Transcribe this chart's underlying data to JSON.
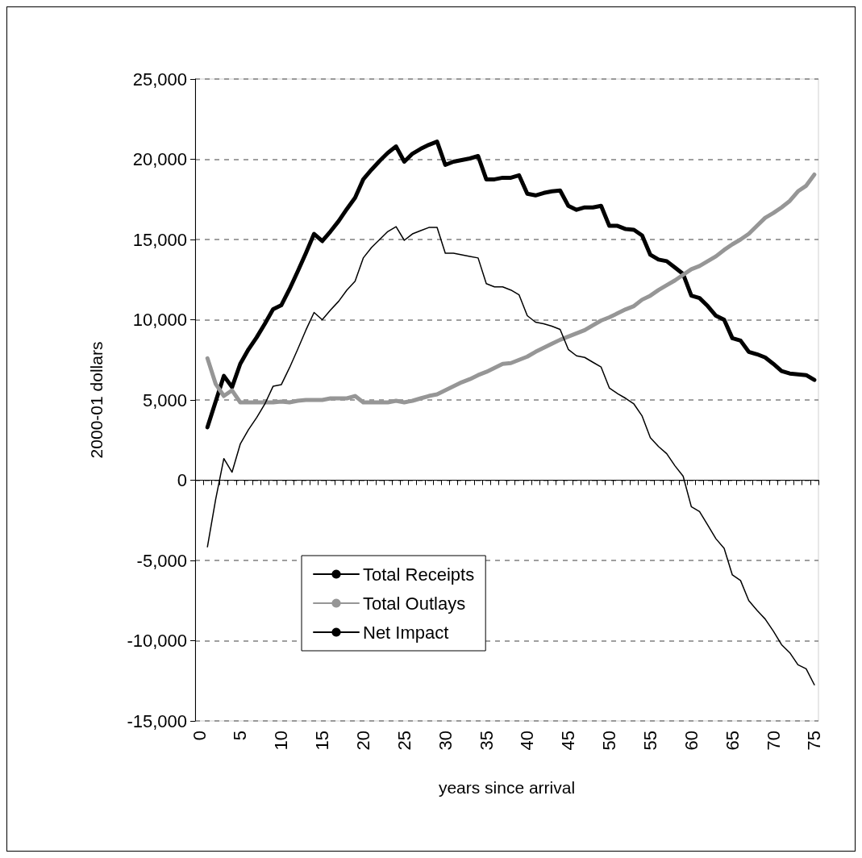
{
  "chart_data": {
    "type": "line",
    "xlabel": "years since arrival",
    "ylabel": "2000-01 dollars",
    "categories": [
      "0",
      null,
      null,
      null,
      null,
      "5",
      null,
      null,
      null,
      null,
      "10",
      null,
      null,
      null,
      null,
      "15",
      null,
      null,
      null,
      null,
      "20",
      null,
      null,
      null,
      null,
      "25",
      null,
      null,
      null,
      null,
      "30",
      null,
      null,
      null,
      null,
      "35",
      null,
      null,
      null,
      null,
      "40",
      null,
      null,
      null,
      null,
      "45",
      null,
      null,
      null,
      null,
      "50",
      null,
      null,
      null,
      null,
      "55",
      null,
      null,
      null,
      null,
      "60",
      null,
      null,
      null,
      null,
      "65",
      null,
      null,
      null,
      null,
      "70",
      null,
      null,
      null,
      null,
      "75"
    ],
    "series": [
      {
        "name": "Total Receipts",
        "color": "#000000",
        "values": [
          null,
          3300,
          4900,
          6500,
          5800,
          7250,
          8150,
          8900,
          9750,
          10650,
          10900,
          11900,
          13000,
          14150,
          15350,
          14900,
          15500,
          16150,
          16900,
          17600,
          18750,
          19350,
          19900,
          20400,
          20800,
          19850,
          20350,
          20650,
          20900,
          21100,
          19650,
          19850,
          19950,
          20050,
          20200,
          18750,
          18750,
          18850,
          18850,
          19000,
          17850,
          17750,
          17900,
          18000,
          18050,
          17100,
          16850,
          17000,
          17000,
          17100,
          15850,
          15850,
          15650,
          15600,
          15250,
          14050,
          13750,
          13650,
          13250,
          12850,
          11500,
          11350,
          10850,
          10250,
          10000,
          8850,
          8700,
          8000,
          7850,
          7650,
          7250,
          6800,
          6650,
          6600,
          6550,
          6250
        ]
      },
      {
        "name": "Total Outlays",
        "color": "#969696",
        "values": [
          null,
          7600,
          6000,
          5250,
          5600,
          4850,
          4850,
          4850,
          4850,
          4850,
          4900,
          4850,
          4950,
          5000,
          5000,
          5000,
          5100,
          5100,
          5100,
          5250,
          4850,
          4850,
          4850,
          4850,
          4950,
          4850,
          4950,
          5100,
          5250,
          5350,
          5600,
          5850,
          6100,
          6300,
          6550,
          6750,
          7000,
          7250,
          7300,
          7500,
          7700,
          8000,
          8250,
          8500,
          8750,
          8950,
          9150,
          9350,
          9650,
          9950,
          10150,
          10400,
          10650,
          10850,
          11250,
          11500,
          11850,
          12150,
          12450,
          12800,
          13150,
          13350,
          13650,
          13950,
          14350,
          14700,
          15000,
          15350,
          15850,
          16350,
          16650,
          17000,
          17400,
          18000,
          18350,
          19050
        ]
      },
      {
        "name": "Net Impact",
        "color": "#000000",
        "values": [
          null,
          -4150,
          -1200,
          1350,
          500,
          2250,
          3150,
          3900,
          4750,
          5850,
          5950,
          7000,
          8150,
          9350,
          10450,
          10000,
          10600,
          11150,
          11850,
          12400,
          13850,
          14500,
          15000,
          15500,
          15800,
          14950,
          15350,
          15550,
          15750,
          15750,
          14150,
          14150,
          14050,
          13950,
          13850,
          12250,
          12050,
          12050,
          11850,
          11550,
          10250,
          9850,
          9750,
          9600,
          9400,
          8150,
          7750,
          7650,
          7350,
          7050,
          5750,
          5400,
          5100,
          4750,
          4000,
          2650,
          2100,
          1650,
          900,
          250,
          -1650,
          -1950,
          -2800,
          -3650,
          -4250,
          -5900,
          -6250,
          -7500,
          -8100,
          -8650,
          -9400,
          -10250,
          -10750,
          -11500,
          -11750,
          -12750
        ]
      }
    ],
    "ylim": [
      -15000,
      25000
    ],
    "yticks": [
      {
        "value": -15000,
        "label": "-15,000"
      },
      {
        "value": -10000,
        "label": "-10,000"
      },
      {
        "value": -5000,
        "label": "-5,000"
      },
      0,
      {
        "value": 5000,
        "label": "5,000"
      },
      {
        "value": 10000,
        "label": "10,000"
      },
      {
        "value": 15000,
        "label": "15,000"
      },
      {
        "value": 20000,
        "label": "20,000"
      },
      {
        "value": 25000,
        "label": "25,000"
      }
    ],
    "grid": "y",
    "legend": "bottom left",
    "marker": "none",
    "line_style": "solid"
  }
}
